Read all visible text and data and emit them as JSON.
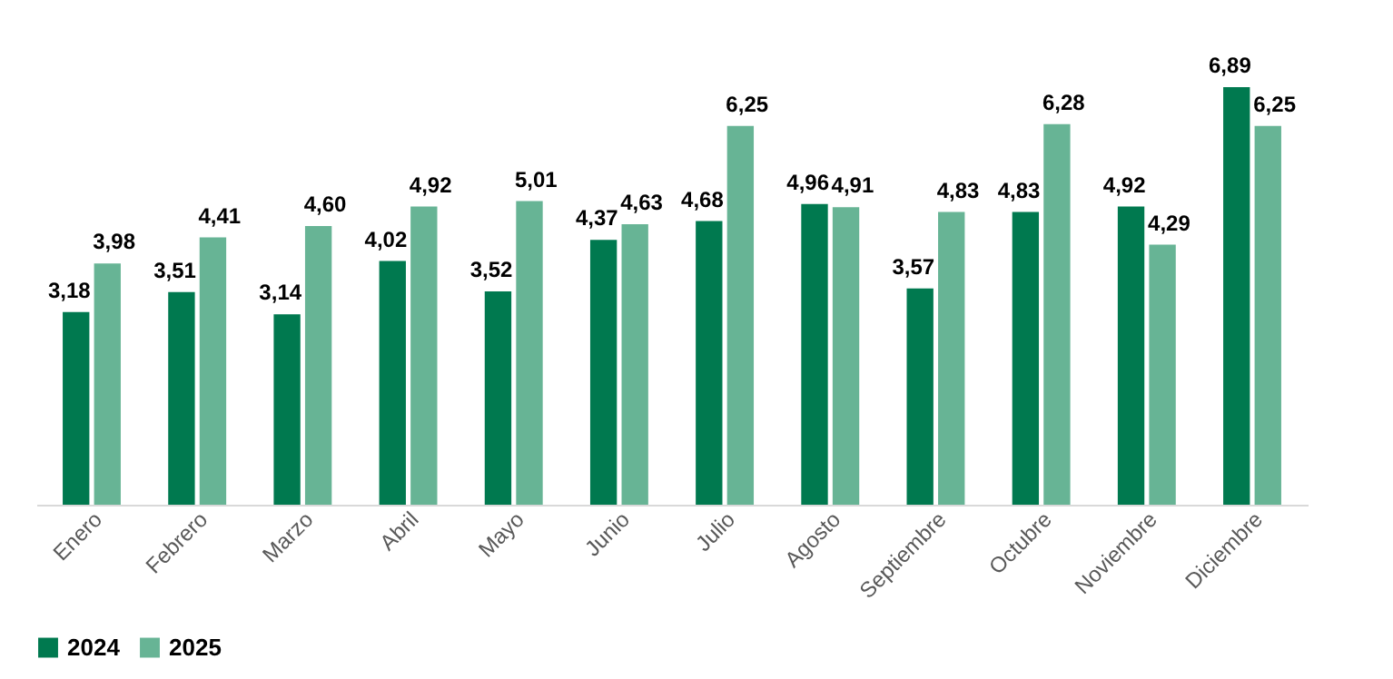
{
  "chart_data": {
    "type": "bar",
    "categories": [
      "Enero",
      "Febrero",
      "Marzo",
      "Abril",
      "Mayo",
      "Junio",
      "Julio",
      "Agosto",
      "Septiembre",
      "Octubre",
      "Noviembre",
      "Diciembre"
    ],
    "series": [
      {
        "name": "2024",
        "color": "#00794f",
        "values": [
          3.18,
          3.51,
          3.14,
          4.02,
          3.52,
          4.37,
          4.68,
          4.96,
          3.57,
          4.83,
          4.92,
          6.89
        ],
        "value_labels": [
          "3,18",
          "3,51",
          "3,14",
          "4,02",
          "3,52",
          "4,37",
          "4,68",
          "4,96",
          "3,57",
          "4,83",
          "4,92",
          "6,89"
        ]
      },
      {
        "name": "2025",
        "color": "#67b495",
        "values": [
          3.98,
          4.41,
          4.6,
          4.92,
          5.01,
          4.63,
          6.25,
          4.91,
          4.83,
          6.28,
          4.29,
          6.25
        ],
        "value_labels": [
          "3,98",
          "4,41",
          "4,60",
          "4,92",
          "5,01",
          "4,63",
          "6,25",
          "4,91",
          "4,83",
          "6,28",
          "4,29",
          "6,25"
        ]
      }
    ],
    "legend": "bottom",
    "grid": false
  }
}
